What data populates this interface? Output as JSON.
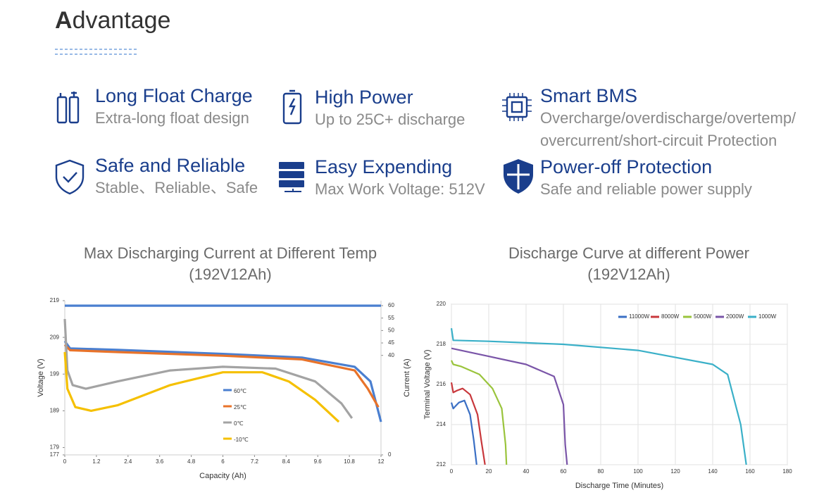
{
  "header": {
    "title": "Advantage"
  },
  "features": [
    {
      "title": "Long Float Charge",
      "description": [
        "Extra-long float design"
      ]
    },
    {
      "title": "High Power",
      "description": [
        "Up to 25C+ discharge"
      ]
    },
    {
      "title": "Smart BMS",
      "description": [
        "Overcharge/overdischarge/overtemp/",
        "overcurrent/short-circuit Protection"
      ]
    },
    {
      "title": "Safe and Reliable",
      "description": [
        "Stable、Reliable、Safe"
      ]
    },
    {
      "title": "Easy Expending",
      "description": [
        "Max Work Voltage: 512V"
      ]
    },
    {
      "title": "Power-off Protection",
      "description": [
        "Safe and reliable power supply"
      ]
    }
  ],
  "chart_data": [
    {
      "type": "line",
      "title": "Max Discharging Current at Different Temp",
      "subtitle": "(192V12Ah)",
      "x_label": "Capacity (Ah)",
      "y_label": "Voltage (V)",
      "y2_label": "Current (A)",
      "xlim": [
        0,
        12
      ],
      "xticks": [
        0,
        1.2,
        2.4,
        3.6,
        4.8,
        6,
        7.2,
        8.4,
        9.6,
        10.8,
        12
      ],
      "ylim": [
        177,
        219
      ],
      "yticks": [
        177,
        179,
        189,
        199,
        209,
        219
      ],
      "y2lim": [
        0,
        62
      ],
      "y2ticks": [
        0,
        40,
        45,
        50,
        55,
        60
      ],
      "grid": false,
      "legend": "center",
      "series": [
        {
          "name": "60℃",
          "color": "#4a7fd0",
          "x": [
            0,
            0.2,
            2,
            6,
            9,
            11,
            11.6,
            12
          ],
          "values": [
            208,
            206,
            205.6,
            204.5,
            203.5,
            201,
            197,
            186
          ]
        },
        {
          "name": "25℃",
          "color": "#e8732a",
          "x": [
            0,
            0.2,
            2,
            6,
            9,
            11,
            11.5,
            11.9
          ],
          "values": [
            207,
            205.5,
            205,
            204,
            203,
            200,
            195,
            190
          ]
        },
        {
          "name": "0℃",
          "color": "#a3a3a3",
          "x": [
            0,
            0.1,
            0.3,
            0.8,
            2,
            4,
            6,
            8,
            9.5,
            10.5,
            10.9
          ],
          "values": [
            214,
            200,
            196,
            195,
            197,
            200,
            201,
            200.5,
            197,
            191,
            187
          ]
        },
        {
          "name": "-10℃",
          "color": "#f5c000",
          "x": [
            0,
            0.1,
            0.4,
            1,
            2,
            4,
            6,
            7.5,
            8.5,
            9.5,
            10.4
          ],
          "values": [
            205,
            195,
            190,
            189,
            190.5,
            196,
            199.5,
            199.5,
            197,
            192,
            186
          ]
        },
        {
          "color": "#4a7fd0",
          "axis": "y2",
          "x": [
            0,
            12
          ],
          "values": [
            60,
            60
          ]
        }
      ]
    },
    {
      "type": "line",
      "title": "Discharge Curve at different Power",
      "subtitle": "(192V12Ah)",
      "x_label": "Discharge Time (Minutes)",
      "y_label": "Terminal Voltage (V)",
      "xlim": [
        0,
        180
      ],
      "xticks": [
        0,
        20,
        40,
        60,
        80,
        100,
        120,
        140,
        160,
        180
      ],
      "ylim": [
        212,
        220
      ],
      "yticks": [
        212,
        214,
        216,
        218,
        220
      ],
      "grid": true,
      "legend": "top-right",
      "series": [
        {
          "name": "11000W",
          "color": "#3a6fc4",
          "x": [
            0,
            1,
            2,
            4,
            7,
            10,
            12,
            13.5
          ],
          "values": [
            215.1,
            214.8,
            214.9,
            215.1,
            215.2,
            214.5,
            213.2,
            212
          ]
        },
        {
          "name": "8000W",
          "color": "#c8383c",
          "x": [
            0,
            1,
            3,
            6,
            10,
            14,
            16,
            18
          ],
          "values": [
            216.1,
            215.6,
            215.7,
            215.8,
            215.5,
            214.5,
            213.2,
            212
          ]
        },
        {
          "name": "5000W",
          "color": "#9ac43c",
          "x": [
            0,
            1,
            5,
            15,
            22,
            27,
            29,
            29.5
          ],
          "values": [
            217.2,
            217,
            216.9,
            216.5,
            215.8,
            214.8,
            213,
            212
          ]
        },
        {
          "name": "2000W",
          "color": "#7a55a8",
          "x": [
            0,
            5,
            20,
            40,
            55,
            60,
            61,
            62
          ],
          "values": [
            217.8,
            217.7,
            217.4,
            217,
            216.4,
            215,
            213,
            212
          ]
        },
        {
          "name": "1000W",
          "color": "#3ab0c8",
          "x": [
            0,
            1,
            20,
            60,
            100,
            140,
            148,
            155,
            158
          ],
          "values": [
            218.8,
            218.2,
            218.15,
            218,
            217.7,
            217,
            216.5,
            214,
            212
          ]
        }
      ]
    }
  ]
}
